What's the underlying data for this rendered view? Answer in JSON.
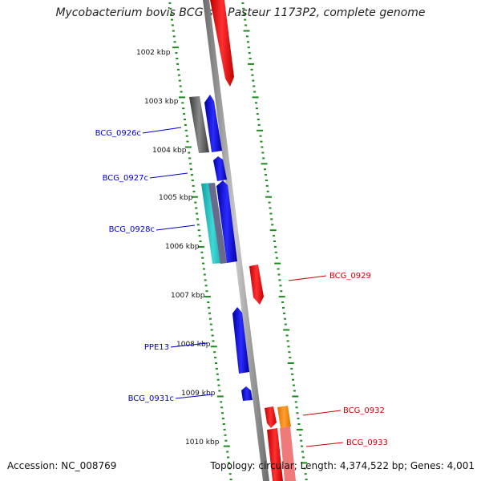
{
  "title": "Mycobacterium bovis BCG str. Pasteur 1173P2, complete genome",
  "footer": {
    "accession": "Accession: NC_008769",
    "topology": "Topology: circular; Length: 4,374,522 bp; Genes: 4,001"
  },
  "colors": {
    "forward_gene": "#ff0000",
    "reverse_gene": "#0000ff",
    "gray_feature": "#666666",
    "teal_feature": "#20c0c0",
    "orange_feature": "#ff8c00",
    "ruler_ticks": "#1a8a1a",
    "backbone": "#8a8a8a"
  },
  "ruler": {
    "labels": [
      "1002 kbp",
      "1003 kbp",
      "1004 kbp",
      "1005 kbp",
      "1006 kbp",
      "1007 kbp",
      "1008 kbp",
      "1009 kbp",
      "1010 kbp"
    ]
  },
  "genes": [
    {
      "name": "BCG_0926c",
      "strand": "reverse"
    },
    {
      "name": "BCG_0927c",
      "strand": "reverse"
    },
    {
      "name": "BCG_0928c",
      "strand": "reverse"
    },
    {
      "name": "BCG_0929",
      "strand": "forward"
    },
    {
      "name": "PPE13",
      "strand": "reverse"
    },
    {
      "name": "BCG_0931c",
      "strand": "reverse"
    },
    {
      "name": "BCG_0932",
      "strand": "forward"
    },
    {
      "name": "BCG_0933",
      "strand": "forward"
    }
  ]
}
